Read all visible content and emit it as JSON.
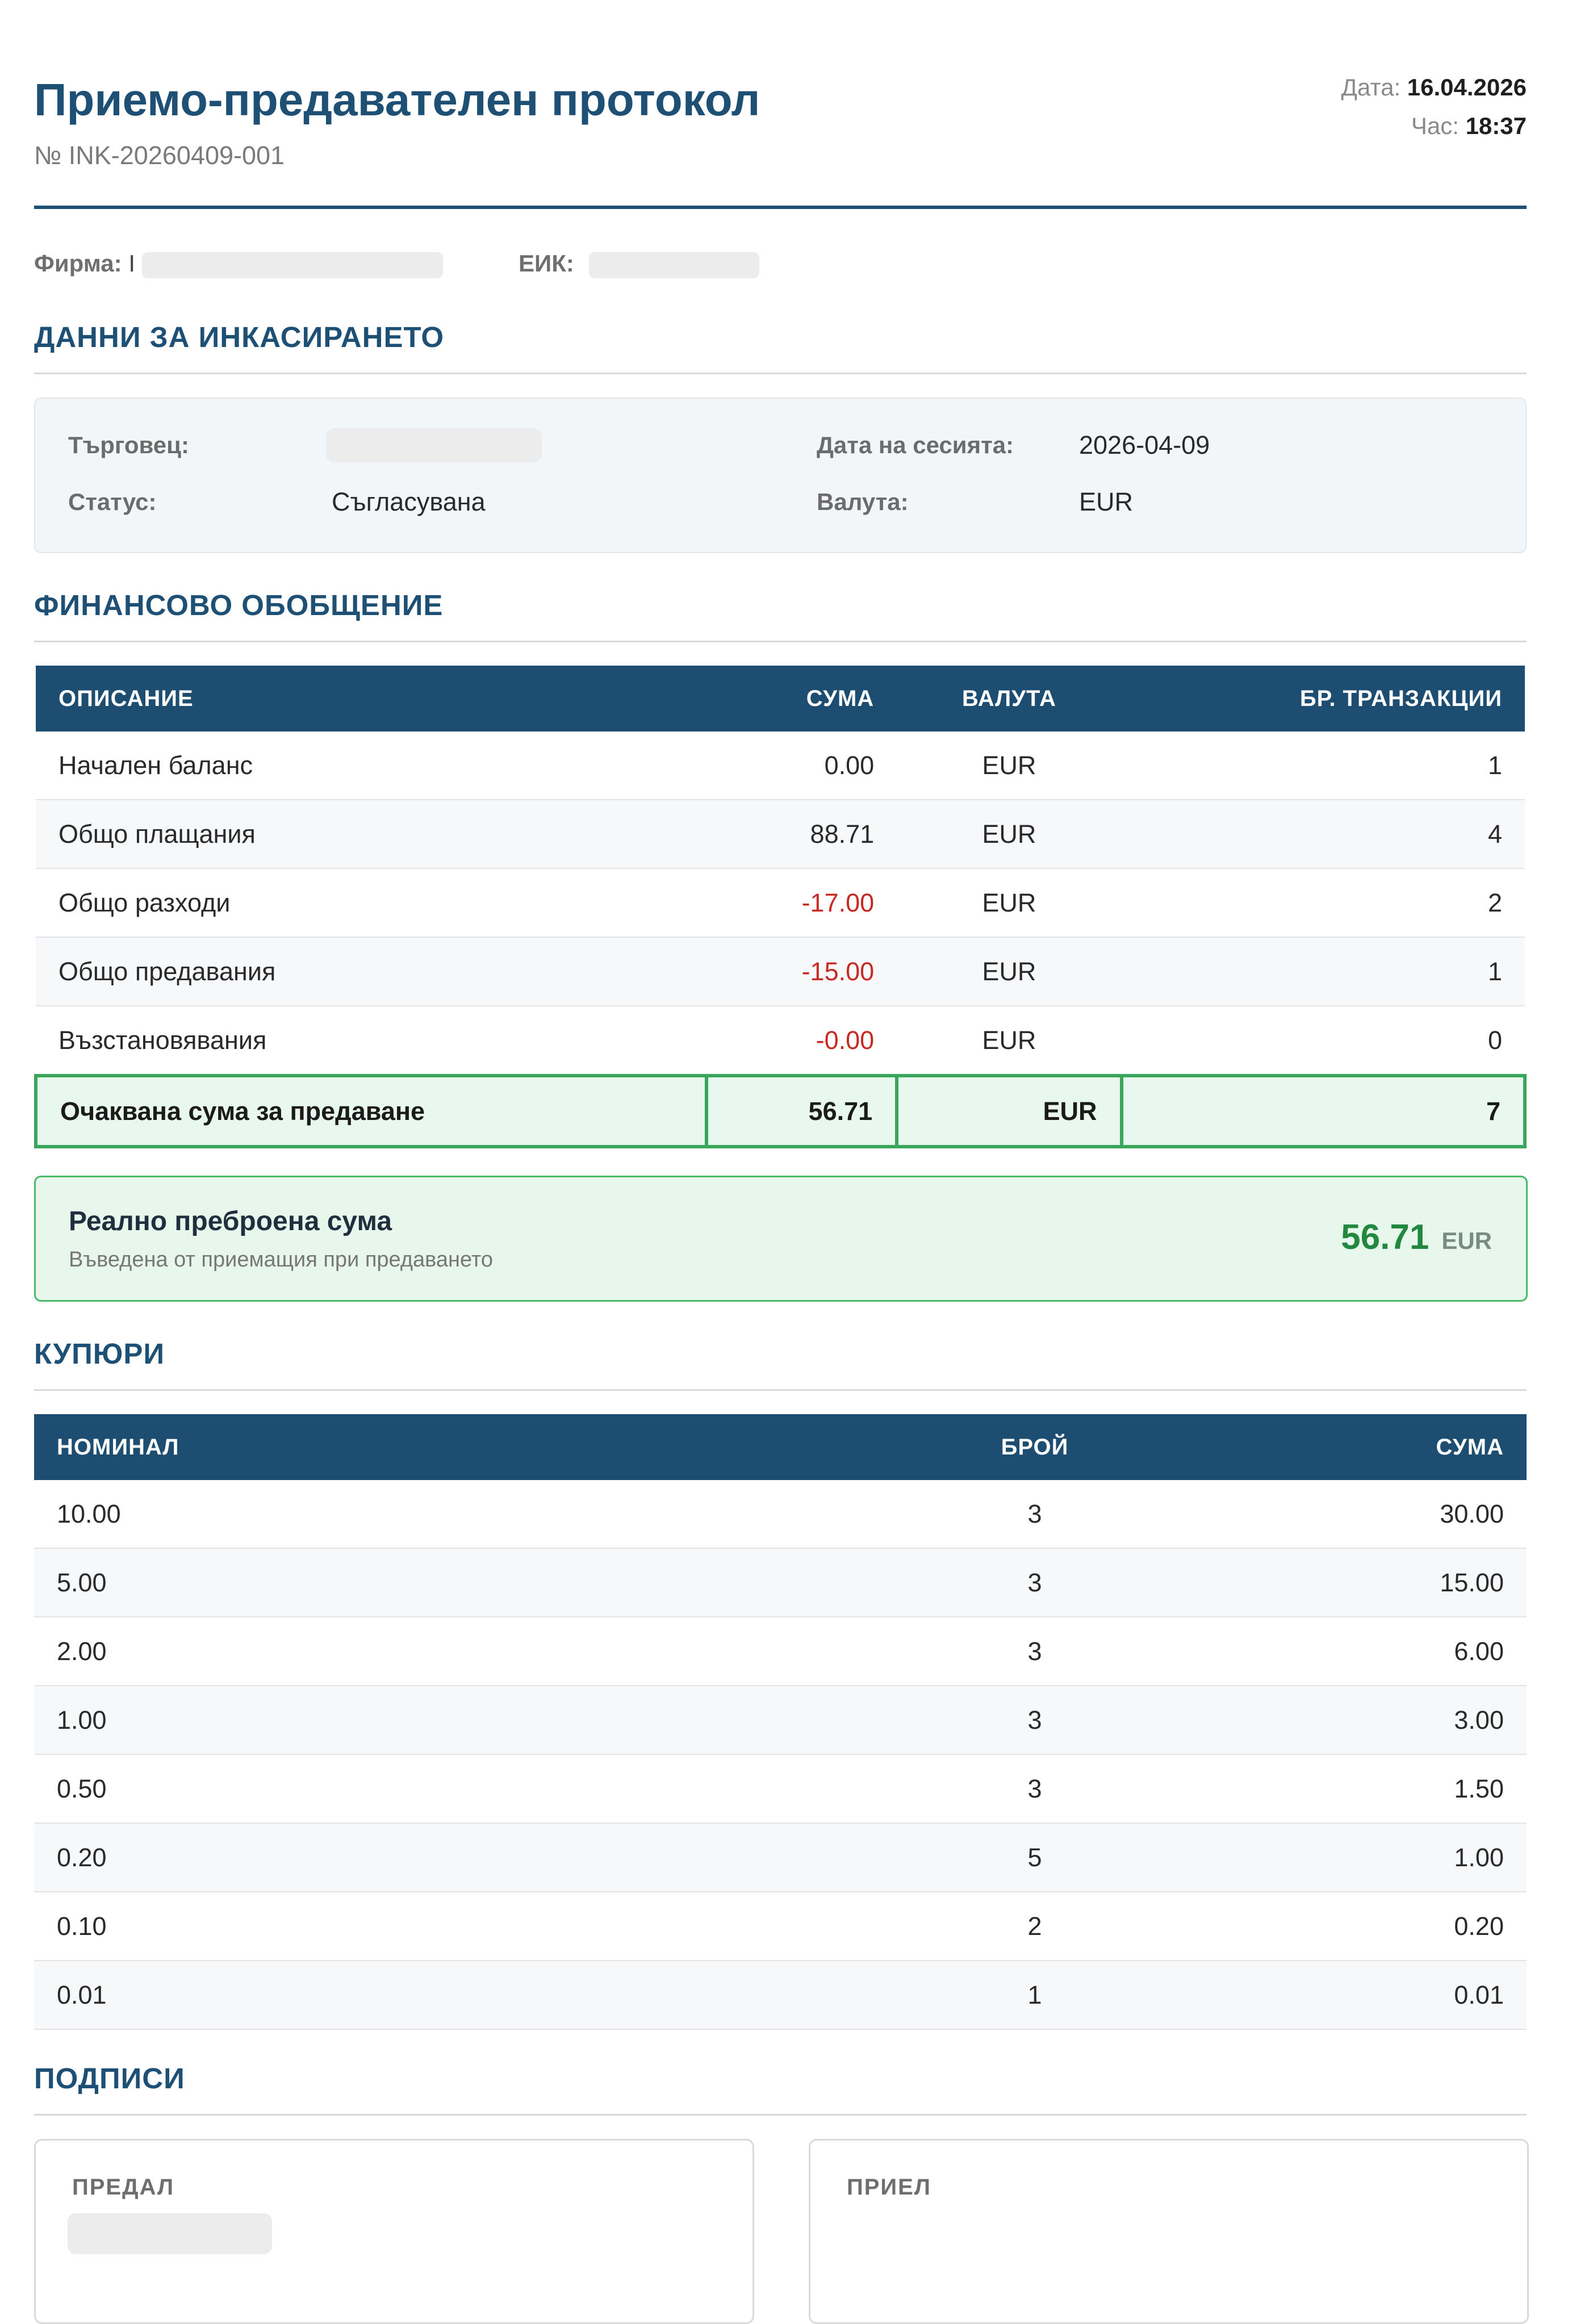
{
  "header": {
    "title": "Приемо-предавателен протокол",
    "number": "№ INK-20260409-001",
    "date_label": "Дата:",
    "date": "16.04.2026",
    "time_label": "Час:",
    "time": "18:37"
  },
  "company": {
    "firm_label": "Фирма:",
    "firm_value": "I",
    "eik_label": "ЕИК:"
  },
  "collection": {
    "section_title": "ДАННИ ЗА ИНКАСИРАНЕТО",
    "merchant_label": "Търговец:",
    "status_label": "Статус:",
    "status_value": "Съгласувана",
    "session_date_label": "Дата на сесията:",
    "session_date_value": "2026-04-09",
    "currency_label": "Валута:",
    "currency_value": "EUR"
  },
  "financial": {
    "section_title": "ФИНАНСОВО ОБОБЩЕНИЕ",
    "headers": [
      "ОПИСАНИЕ",
      "СУМА",
      "ВАЛУТА",
      "БР. ТРАНЗАКЦИИ"
    ],
    "rows": [
      {
        "description": "Начален баланс",
        "amount": "0.00",
        "currency": "EUR",
        "count": "1"
      },
      {
        "description": "Общо плащания",
        "amount": "88.71",
        "currency": "EUR",
        "count": "4"
      },
      {
        "description": "Общо разходи",
        "amount": "-17.00",
        "currency": "EUR",
        "count": "2"
      },
      {
        "description": "Общо предавания",
        "amount": "-15.00",
        "currency": "EUR",
        "count": "1"
      },
      {
        "description": "Възстановявания",
        "amount": "-0.00",
        "currency": "EUR",
        "count": "0"
      }
    ],
    "expected": {
      "description": "Очаквана сума за предаване",
      "amount": "56.71",
      "currency": "EUR",
      "count": "7"
    }
  },
  "counted": {
    "title": "Реално преброена сума",
    "subtitle": "Въведена от приемащия при предаването",
    "amount": "56.71",
    "currency": "EUR"
  },
  "banknotes": {
    "section_title": "КУПЮРИ",
    "headers": [
      "НОМИНАЛ",
      "БРОЙ",
      "СУМА"
    ],
    "rows": [
      {
        "denomination": "10.00",
        "count": "3",
        "sum": "30.00"
      },
      {
        "denomination": "5.00",
        "count": "3",
        "sum": "15.00"
      },
      {
        "denomination": "2.00",
        "count": "3",
        "sum": "6.00"
      },
      {
        "denomination": "1.00",
        "count": "3",
        "sum": "3.00"
      },
      {
        "denomination": "0.50",
        "count": "3",
        "sum": "1.50"
      },
      {
        "denomination": "0.20",
        "count": "5",
        "sum": "1.00"
      },
      {
        "denomination": "0.10",
        "count": "2",
        "sum": "0.20"
      },
      {
        "denomination": "0.01",
        "count": "1",
        "sum": "0.01"
      }
    ]
  },
  "signatures": {
    "section_title": "ПОДПИСИ",
    "handed_label": "ПРЕДАЛ",
    "received_label": "ПРИЕЛ"
  },
  "colors": {
    "primary": "#1e4f74",
    "negative": "#c72a22",
    "positive": "#23883f",
    "success_border": "#3aa65b"
  }
}
